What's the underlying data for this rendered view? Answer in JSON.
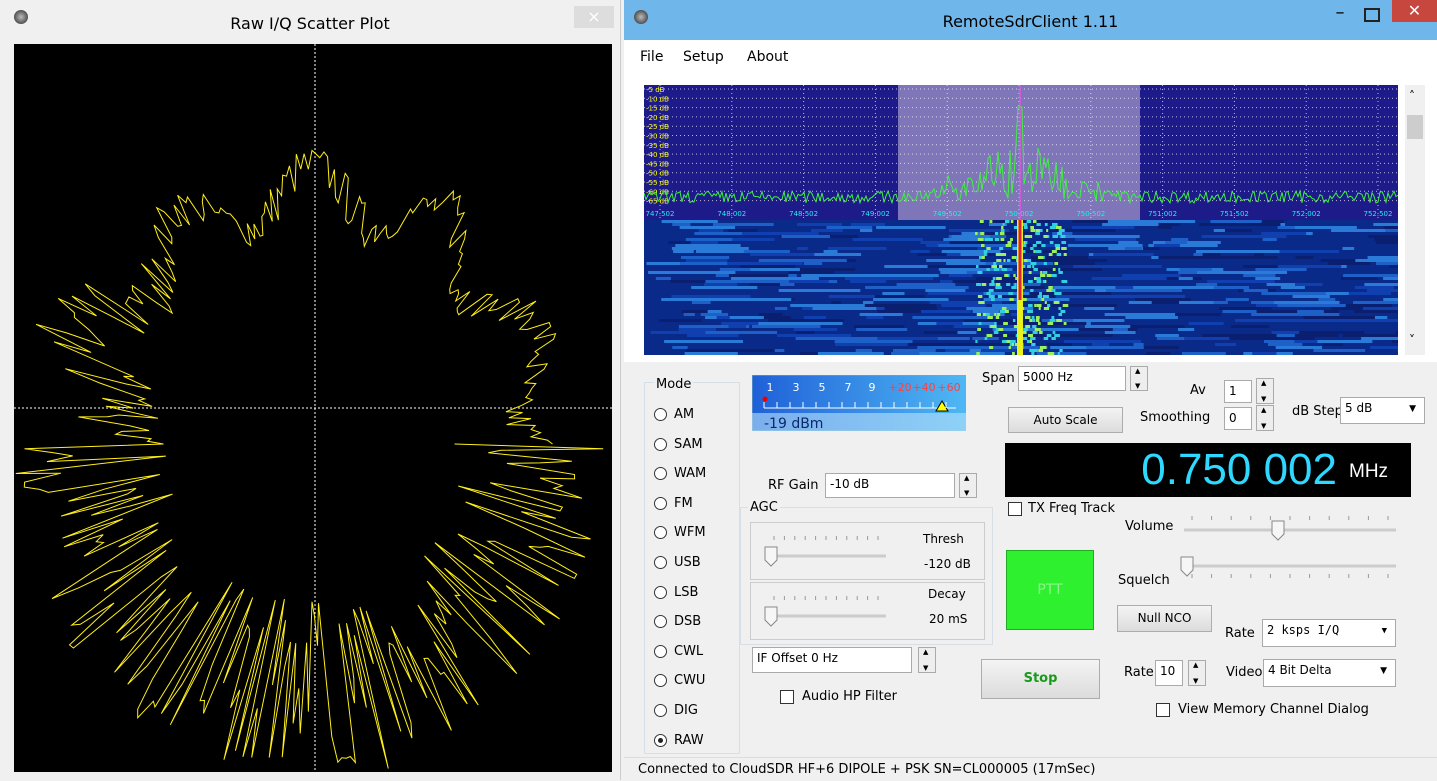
{
  "scatter_window": {
    "title": "Raw I/Q Scatter Plot",
    "close": "×"
  },
  "main_window": {
    "title": "RemoteSdrClient 1.11"
  },
  "menu": [
    "File",
    "Setup",
    "About"
  ],
  "spectrum": {
    "db_labels": [
      "-5 dB",
      "-10 dB",
      "-15 dB",
      "-20 dB",
      "-25 dB",
      "-30 dB",
      "-35 dB",
      "-40 dB",
      "-45 dB",
      "-50 dB",
      "-55 dB",
      "-60 dB",
      "-65 dB"
    ],
    "freq_labels": [
      "747.502",
      "748.002",
      "748.502",
      "749.002",
      "749.502",
      "750.002",
      "750.502",
      "751.002",
      "751.502",
      "752.002",
      "752.502"
    ]
  },
  "mode": {
    "label": "Mode",
    "options": [
      "AM",
      "SAM",
      "WAM",
      "FM",
      "WFM",
      "USB",
      "LSB",
      "DSB",
      "CWL",
      "CWU",
      "DIG",
      "RAW"
    ],
    "selected": 11
  },
  "meter": {
    "scale": [
      "1",
      "3",
      "5",
      "7",
      "9",
      "+20",
      "+40",
      "+60"
    ],
    "reading": "-19 dBm"
  },
  "span": {
    "label": "Span",
    "value": "5000 Hz"
  },
  "auto_scale": "Auto Scale",
  "av": {
    "label": "Av",
    "value": "1"
  },
  "smoothing": {
    "label": "Smoothing",
    "value": "0"
  },
  "db_step": {
    "label": "dB Step",
    "value": "5 dB"
  },
  "frequency": {
    "value": "0.750 002",
    "unit": "MHz"
  },
  "rf_gain": {
    "label": "RF Gain",
    "value": "-10 dB"
  },
  "agc": {
    "label": "AGC",
    "thresh_label": "Thresh",
    "thresh_value": "-120 dB",
    "decay_label": "Decay",
    "decay_value": "20 mS"
  },
  "tx_freq_track": "TX Freq Track",
  "volume": "Volume",
  "squelch": "Squelch",
  "ptt": "PTT",
  "null_nco": "Null NCO",
  "rate": {
    "label": "Rate",
    "value": "2 ksps I/Q"
  },
  "video": {
    "label": "Video",
    "value": "4 Bit Delta"
  },
  "rate2": {
    "label": "Rate",
    "value": "10"
  },
  "if_offset": "IF Offset 0 Hz",
  "audio_hp_filter": "Audio HP Filter",
  "stop": "Stop",
  "view_memory": "View Memory Channel Dialog",
  "status": "Connected to CloudSDR HF+6 DIPOLE + PSK SN=CL000005 (17mSec)"
}
